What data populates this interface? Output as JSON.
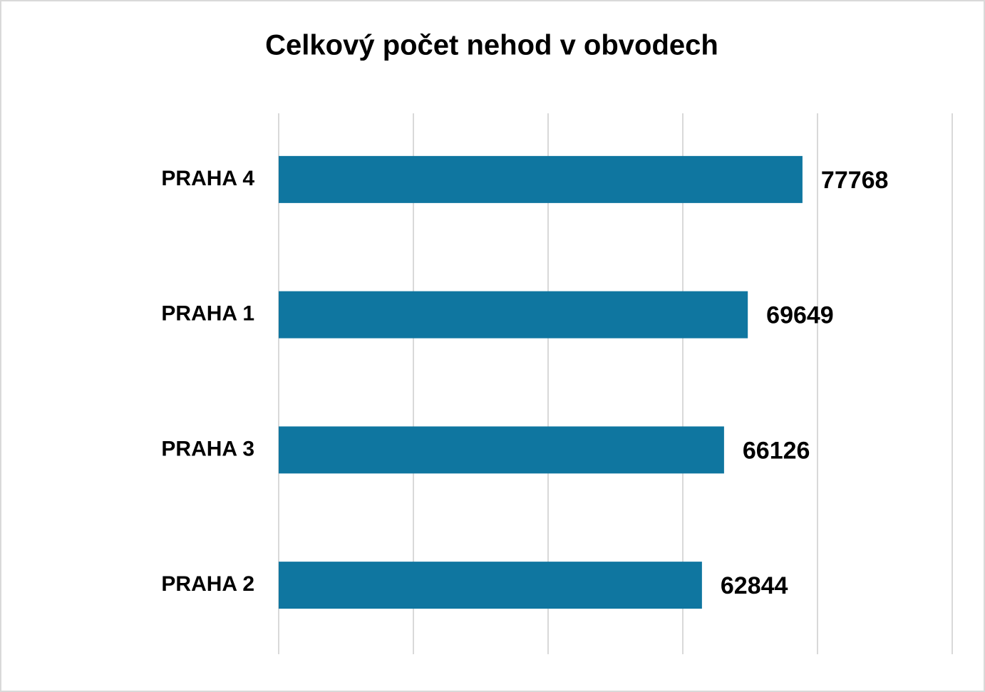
{
  "chart_data": {
    "type": "hbar",
    "title": "Celkový počet nehod v obvodech",
    "categories": [
      "PRAHA 4",
      "PRAHA 1",
      "PRAHA 3",
      "PRAHA 2"
    ],
    "values": [
      77768,
      69649,
      66126,
      62844
    ],
    "color": "#0f76a0",
    "xlim": [
      0,
      100000
    ],
    "xticks": [
      0,
      20000,
      40000,
      60000,
      80000,
      100000
    ],
    "grid": true
  }
}
